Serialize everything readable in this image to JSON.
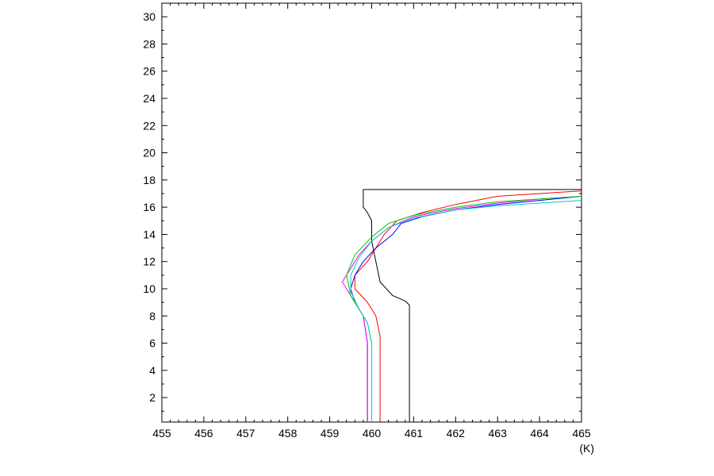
{
  "chart_data": {
    "type": "line",
    "title": "",
    "xlabel": "",
    "ylabel": "",
    "x_unit": "(K)",
    "xlim": [
      455,
      465
    ],
    "ylim": [
      0.2,
      31
    ],
    "x_ticks": [
      455,
      456,
      457,
      458,
      459,
      460,
      461,
      462,
      463,
      464,
      465
    ],
    "y_ticks": [
      2,
      4,
      6,
      8,
      10,
      12,
      14,
      16,
      18,
      20,
      22,
      24,
      26,
      28,
      30
    ],
    "grid": false,
    "legend": "none",
    "series": [
      {
        "color": "#000000",
        "points": [
          [
            460.9,
            0.2
          ],
          [
            460.9,
            8.8
          ],
          [
            460.8,
            9.1
          ],
          [
            460.5,
            9.5
          ],
          [
            460.2,
            10.5
          ],
          [
            460.1,
            12.0
          ],
          [
            460.0,
            13.5
          ],
          [
            460.0,
            15.0
          ],
          [
            459.9,
            15.6
          ],
          [
            459.8,
            16.0
          ],
          [
            459.8,
            17.3
          ],
          [
            465,
            17.3
          ]
        ]
      },
      {
        "color": "#ff0000",
        "points": [
          [
            460.2,
            0.2
          ],
          [
            460.2,
            6.5
          ],
          [
            460.1,
            8.0
          ],
          [
            459.9,
            9.0
          ],
          [
            459.6,
            10.0
          ],
          [
            459.6,
            11.0
          ],
          [
            459.9,
            12.0
          ],
          [
            460.1,
            13.0
          ],
          [
            460.3,
            14.0
          ],
          [
            460.6,
            15.0
          ],
          [
            461.2,
            15.6
          ],
          [
            462.0,
            16.2
          ],
          [
            463.0,
            16.8
          ],
          [
            464.0,
            17.0
          ],
          [
            465,
            17.2
          ]
        ]
      },
      {
        "color": "#0000ff",
        "points": [
          [
            459.9,
            0.2
          ],
          [
            459.9,
            6.0
          ],
          [
            459.8,
            8.0
          ],
          [
            459.6,
            9.0
          ],
          [
            459.5,
            10.0
          ],
          [
            459.6,
            11.0
          ],
          [
            459.8,
            12.0
          ],
          [
            460.1,
            13.0
          ],
          [
            460.5,
            14.0
          ],
          [
            460.7,
            14.8
          ],
          [
            461.2,
            15.3
          ],
          [
            462.0,
            15.8
          ],
          [
            463.0,
            16.2
          ],
          [
            464.0,
            16.5
          ],
          [
            465,
            16.8
          ]
        ]
      },
      {
        "color": "#ff00ff",
        "points": [
          [
            459.9,
            0.2
          ],
          [
            459.9,
            6.0
          ],
          [
            459.8,
            8.0
          ],
          [
            459.6,
            9.0
          ],
          [
            459.3,
            10.5
          ],
          [
            459.5,
            11.5
          ],
          [
            459.7,
            12.5
          ],
          [
            460.0,
            13.5
          ],
          [
            460.4,
            14.5
          ],
          [
            461.0,
            15.3
          ],
          [
            462.0,
            15.9
          ],
          [
            463.0,
            16.3
          ],
          [
            464.0,
            16.6
          ],
          [
            465,
            16.8
          ]
        ]
      },
      {
        "color": "#00cc00",
        "points": [
          [
            460.0,
            0.2
          ],
          [
            460.0,
            6.0
          ],
          [
            459.9,
            7.5
          ],
          [
            459.7,
            8.5
          ],
          [
            459.5,
            9.5
          ],
          [
            459.4,
            11.0
          ],
          [
            459.6,
            12.5
          ],
          [
            460.0,
            13.8
          ],
          [
            460.4,
            14.8
          ],
          [
            461.0,
            15.4
          ],
          [
            462.0,
            16.0
          ],
          [
            463.0,
            16.4
          ],
          [
            464.0,
            16.6
          ],
          [
            465,
            16.8
          ]
        ]
      },
      {
        "color": "#00cccc",
        "points": [
          [
            460.0,
            0.2
          ],
          [
            460.0,
            6.0
          ],
          [
            459.9,
            7.5
          ],
          [
            459.7,
            8.5
          ],
          [
            459.5,
            9.8
          ],
          [
            459.5,
            11.0
          ],
          [
            459.7,
            12.3
          ],
          [
            460.0,
            13.5
          ],
          [
            460.4,
            14.5
          ],
          [
            461.0,
            15.2
          ],
          [
            462.0,
            15.8
          ],
          [
            463.0,
            16.1
          ],
          [
            464.0,
            16.3
          ],
          [
            465,
            16.5
          ]
        ]
      }
    ]
  }
}
